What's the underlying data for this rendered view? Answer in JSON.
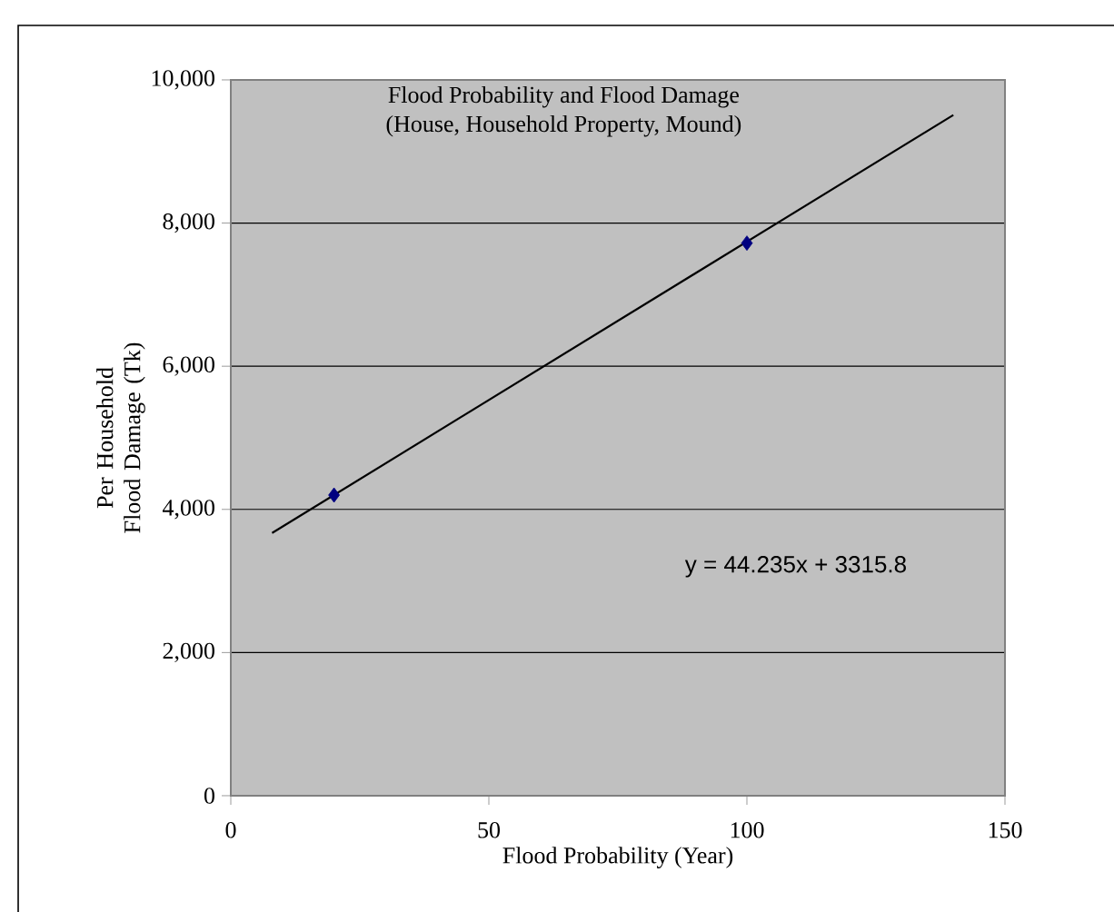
{
  "chart_data": {
    "type": "scatter",
    "title": "Flood Probability and Flood Damage",
    "subtitle": "(House, Household Property, Mound)",
    "xlabel": "Flood Probability (Year)",
    "ylabel": "Per Household Flood Damage (Tk)",
    "annotations": [
      "y = 44.235x + 3315.8"
    ],
    "series": [
      {
        "type": "line",
        "color": "#000000",
        "x": [
          8,
          140
        ],
        "values": [
          3670,
          9510
        ],
        "marker": "none"
      },
      {
        "color": "#000080",
        "x": [
          20,
          100
        ],
        "values": [
          4200,
          7720
        ],
        "marker": "diamond"
      }
    ],
    "xlim": [
      0,
      150
    ],
    "xticks": [
      0,
      50,
      100,
      150
    ],
    "ylim": [
      0,
      10000
    ],
    "yticks": [
      0,
      {
        "value": 2000,
        "label": "2,000"
      },
      {
        "value": 4000,
        "label": "4,000"
      },
      {
        "value": 6000,
        "label": "6,000"
      },
      {
        "value": 8000,
        "label": "8,000"
      },
      {
        "value": 10000,
        "label": "10,000"
      }
    ],
    "grid": "y"
  }
}
